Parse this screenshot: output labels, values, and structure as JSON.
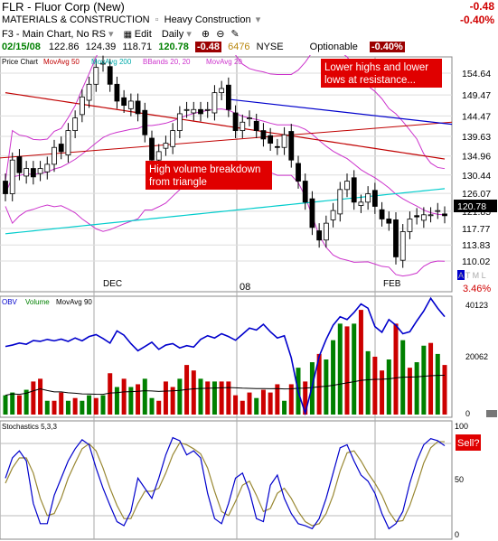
{
  "header": {
    "symbol_line": "FLR - Fluor Corp (New)",
    "sector": "MATERIALS & CONSTRUCTION",
    "industry": "Heavy Construction",
    "change_value": "-0.48",
    "change_pct": "-0.40%",
    "chart_name": "F3 - Main Chart, No RS",
    "edit_label": "Edit",
    "period_label": "Daily",
    "date": "02/15/08",
    "open": "122.86",
    "high": "124.39",
    "low": "118.71",
    "close": "120.78",
    "change_box": "-0.48",
    "volume": "6476",
    "exchange": "NYSE",
    "optionable_label": "Optionable",
    "change_pct_box": "-0.40%"
  },
  "price_panel": {
    "legend": [
      "Price Chart",
      "MovAvg 50",
      "MovAvg 200",
      "BBands 20, 20",
      "MovAvg 20"
    ],
    "price_labels": [
      "154.64",
      "149.47",
      "144.47",
      "139.63",
      "134.96",
      "130.44",
      "126.07",
      "121.85",
      "117.77",
      "113.83",
      "110.02"
    ],
    "last_price": "120.78",
    "month_labels": [
      "DEC",
      "08",
      "FEB"
    ],
    "annotation_resistance": [
      "Lower highs and lower",
      "lows at resistance..."
    ],
    "annotation_breakdown": [
      "High volume breakdown",
      "from triangle"
    ],
    "indicator_letters": "A T M L",
    "pct_label": "3.46%"
  },
  "volume_panel": {
    "legend": [
      "OBV",
      "Volume",
      "MovAvg 90"
    ],
    "axis_labels": [
      "40123",
      "20062",
      "0"
    ]
  },
  "stoch_panel": {
    "legend": "Stochastics 5,3,3",
    "axis_labels": [
      "100",
      "50",
      "0"
    ],
    "annotation": "Sell?"
  },
  "colors": {
    "up_candle": "#008000",
    "down_candle": "#cc0000",
    "ma50": "#c00000",
    "ma200": "#00cccc",
    "bbands": "#cc33cc",
    "ma20": "#cc33cc",
    "trend_line": "#0000cc",
    "obv": "#0000cc",
    "annotation_bg": "#e00000"
  },
  "chart_data": {
    "type": "candlestick",
    "symbol": "FLR",
    "y_axis": [
      110.02,
      154.64
    ],
    "closes": [
      126,
      134,
      131,
      132,
      130,
      132,
      133,
      137,
      136,
      141,
      144,
      149,
      152,
      156,
      157,
      152,
      148,
      147,
      148,
      145,
      140,
      134,
      136,
      138,
      141,
      145,
      146,
      146,
      145,
      146,
      150,
      151,
      146,
      141,
      143,
      144,
      141,
      139,
      138,
      137,
      140,
      134,
      129,
      124,
      118,
      115,
      119,
      122,
      127,
      129,
      124,
      124,
      126,
      123,
      120,
      119,
      111,
      117,
      120,
      120.5,
      121,
      121,
      122,
      120.78
    ],
    "volume": [
      7,
      8,
      7,
      9,
      12,
      13,
      5,
      5,
      8,
      5,
      6,
      5,
      7,
      6,
      7,
      15,
      10,
      13,
      10,
      11,
      13,
      6,
      5,
      12,
      10,
      13,
      18,
      16,
      13,
      12,
      12,
      12,
      12,
      7,
      5,
      8,
      6,
      9,
      8,
      11,
      5,
      11,
      17,
      12,
      19,
      22,
      20,
      27,
      33,
      32,
      33,
      38,
      23,
      21,
      16,
      20,
      33,
      27,
      17,
      19,
      25,
      26,
      22,
      18
    ],
    "volume_up": [
      true,
      true,
      false,
      true,
      false,
      false,
      true,
      false,
      false,
      true,
      false,
      true,
      true,
      false,
      true,
      false,
      true,
      false,
      true,
      false,
      true,
      true,
      false,
      false,
      false,
      true,
      false,
      false,
      true,
      false,
      true,
      false,
      false,
      false,
      false,
      false,
      true,
      false,
      false,
      false,
      true,
      false,
      true,
      false,
      true,
      false,
      true,
      true,
      true,
      false,
      true,
      false,
      true,
      false,
      false,
      true,
      false,
      true,
      false,
      true,
      true,
      false,
      true,
      false
    ],
    "obv": [
      24000,
      24500,
      25200,
      24800,
      26100,
      25800,
      26500,
      26000,
      26600,
      25800,
      27000,
      26000,
      27500,
      28200,
      26800,
      25200,
      29500,
      28000,
      25000,
      22500,
      24000,
      25500,
      23000,
      24500,
      25000,
      23500,
      24300,
      23800,
      26500,
      27800,
      27000,
      28500,
      27500,
      26200,
      28300,
      30500,
      29800,
      31800,
      29200,
      27000,
      27800,
      20000,
      8000,
      500,
      10000,
      20500,
      26500,
      31500,
      34500,
      33500,
      36000,
      39000,
      37500,
      31000,
      29000,
      33500,
      31500,
      28500,
      29200,
      33000,
      36500,
      41000,
      37500,
      34500
    ],
    "stoch_k": [
      55,
      75,
      82,
      72,
      30,
      10,
      10,
      38,
      55,
      72,
      84,
      93,
      88,
      65,
      45,
      28,
      12,
      8,
      22,
      55,
      45,
      35,
      55,
      78,
      95,
      92,
      78,
      82,
      75,
      40,
      15,
      10,
      30,
      55,
      60,
      42,
      15,
      12,
      48,
      58,
      35,
      20,
      10,
      8,
      5,
      15,
      35,
      60,
      85,
      88,
      72,
      58,
      52,
      40,
      20,
      5,
      10,
      22,
      50,
      72,
      88,
      94,
      92,
      87
    ],
    "stoch_d": [
      50,
      65,
      75,
      75,
      60,
      35,
      18,
      20,
      35,
      55,
      70,
      84,
      89,
      82,
      65,
      45,
      28,
      15,
      15,
      30,
      42,
      42,
      45,
      60,
      78,
      90,
      88,
      84,
      79,
      65,
      42,
      22,
      18,
      32,
      48,
      52,
      38,
      22,
      25,
      40,
      45,
      35,
      22,
      12,
      8,
      10,
      20,
      38,
      62,
      80,
      82,
      72,
      60,
      50,
      38,
      22,
      12,
      13,
      28,
      48,
      70,
      85,
      91,
      91
    ]
  }
}
